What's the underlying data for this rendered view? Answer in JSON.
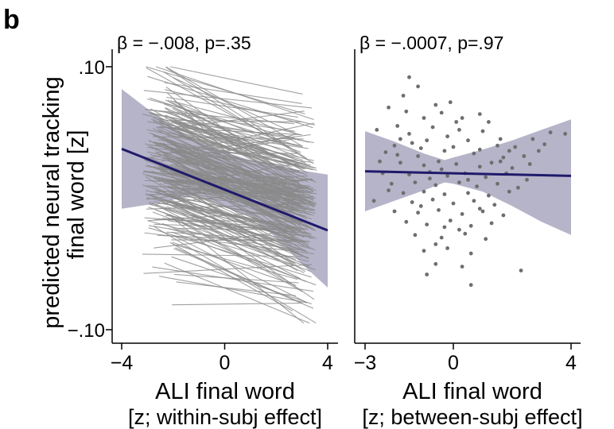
{
  "panel_label": "b",
  "ylabel_line1": "predicted neural tracking",
  "ylabel_line2": "final word [z]",
  "chart_data": [
    {
      "type": "line",
      "panel": "within-subj",
      "title": "β = −.008, p=.35",
      "xlabel_line1": "ALI final word",
      "xlabel_line2": "[z; within-subj effect]",
      "xlim": [
        -4,
        4
      ],
      "ylim": [
        -0.1,
        0.1
      ],
      "xticks": [
        {
          "v": -4,
          "label": "−4"
        },
        {
          "v": 0,
          "label": "0"
        },
        {
          "v": 4,
          "label": "4"
        }
      ],
      "yticks": [
        {
          "v": 0.1,
          "label": ".10"
        },
        {
          "v": -0.1,
          "label": "−.10"
        }
      ],
      "fit": {
        "x": [
          -4,
          4
        ],
        "y": [
          0.0375,
          -0.0245
        ]
      },
      "ci": {
        "x": [
          -4,
          -3,
          -2,
          -1,
          0,
          1,
          2,
          3,
          4
        ],
        "upper": [
          0.083,
          0.068,
          0.054,
          0.043,
          0.035,
          0.029,
          0.025,
          0.021,
          0.018
        ],
        "lower": [
          -0.008,
          -0.005,
          -0.001,
          0.002,
          -0.006,
          -0.014,
          -0.03,
          -0.05,
          -0.068
        ]
      },
      "subject_lines": {
        "count": 260,
        "x_start_range": [
          -3.2,
          -1.8
        ],
        "x_end_range": [
          2.6,
          3.6
        ],
        "y_center_start": 0.026,
        "y_center_end": -0.008,
        "y_spread": 0.034,
        "slope_sd": 0.011
      },
      "colors": {
        "fit": "#1f1a6b",
        "band": "#a9a7bf",
        "subject_lines": "#8a8a8a"
      }
    },
    {
      "type": "scatter",
      "panel": "between-subj",
      "title": "β = −.0007, p=.97",
      "xlabel_line1": "ALI final word",
      "xlabel_line2": "[z; between-subj effect]",
      "xlim": [
        -3,
        4
      ],
      "ylim": [
        -0.1,
        0.1
      ],
      "xticks": [
        {
          "v": -3,
          "label": "−3"
        },
        {
          "v": 0,
          "label": "0"
        },
        {
          "v": 4,
          "label": "4"
        }
      ],
      "fit": {
        "x": [
          -3,
          4
        ],
        "y": [
          0.0205,
          0.017
        ]
      },
      "ci": {
        "x": [
          -3,
          -2,
          -1,
          -0.3,
          0,
          1,
          2,
          3,
          4
        ],
        "upper": [
          0.051,
          0.043,
          0.034,
          0.029,
          0.031,
          0.037,
          0.044,
          0.052,
          0.06
        ],
        "lower": [
          -0.01,
          -0.002,
          0.006,
          0.012,
          0.011,
          0.005,
          -0.006,
          -0.018,
          -0.028
        ]
      },
      "points": [
        {
          "x": -1.5,
          "y": 0.092
        },
        {
          "x": -1.2,
          "y": 0.085
        },
        {
          "x": -1.7,
          "y": 0.078
        },
        {
          "x": -2.2,
          "y": 0.069
        },
        {
          "x": -0.6,
          "y": 0.071
        },
        {
          "x": -0.1,
          "y": 0.073
        },
        {
          "x": -1.6,
          "y": 0.066
        },
        {
          "x": -0.4,
          "y": 0.065
        },
        {
          "x": -1.0,
          "y": 0.061
        },
        {
          "x": 0.3,
          "y": 0.061
        },
        {
          "x": 0.9,
          "y": 0.064
        },
        {
          "x": 1.2,
          "y": 0.058
        },
        {
          "x": -2.6,
          "y": 0.052
        },
        {
          "x": -1.9,
          "y": 0.055
        },
        {
          "x": -0.7,
          "y": 0.054
        },
        {
          "x": 0.2,
          "y": 0.052
        },
        {
          "x": 1.0,
          "y": 0.051
        },
        {
          "x": 3.3,
          "y": 0.05
        },
        {
          "x": 3.8,
          "y": 0.049
        },
        {
          "x": 2.7,
          "y": 0.045
        },
        {
          "x": 3.1,
          "y": 0.041
        },
        {
          "x": -2.0,
          "y": 0.04
        },
        {
          "x": -1.4,
          "y": 0.042
        },
        {
          "x": -0.9,
          "y": 0.044
        },
        {
          "x": 0.5,
          "y": 0.044
        },
        {
          "x": 1.5,
          "y": 0.04
        },
        {
          "x": 2.1,
          "y": 0.039
        },
        {
          "x": -2.3,
          "y": 0.035
        },
        {
          "x": -1.2,
          "y": 0.032
        },
        {
          "x": -0.3,
          "y": 0.036
        },
        {
          "x": 0.7,
          "y": 0.034
        },
        {
          "x": 1.7,
          "y": 0.031
        },
        {
          "x": 2.4,
          "y": 0.032
        },
        {
          "x": -1.8,
          "y": 0.027
        },
        {
          "x": -1.0,
          "y": 0.025
        },
        {
          "x": -0.5,
          "y": 0.028
        },
        {
          "x": 0.1,
          "y": 0.026
        },
        {
          "x": 0.9,
          "y": 0.024
        },
        {
          "x": 1.3,
          "y": 0.027
        },
        {
          "x": 2.0,
          "y": 0.023
        },
        {
          "x": 2.6,
          "y": 0.026
        },
        {
          "x": -2.4,
          "y": 0.019
        },
        {
          "x": -1.5,
          "y": 0.018
        },
        {
          "x": -0.8,
          "y": 0.02
        },
        {
          "x": -0.2,
          "y": 0.017
        },
        {
          "x": 0.4,
          "y": 0.019
        },
        {
          "x": 1.1,
          "y": 0.016
        },
        {
          "x": 1.8,
          "y": 0.019
        },
        {
          "x": -2.1,
          "y": 0.011
        },
        {
          "x": -1.3,
          "y": 0.012
        },
        {
          "x": -0.6,
          "y": 0.01
        },
        {
          "x": 0.2,
          "y": 0.012
        },
        {
          "x": 0.8,
          "y": 0.009
        },
        {
          "x": 1.5,
          "y": 0.011
        },
        {
          "x": 2.2,
          "y": 0.008
        },
        {
          "x": -1.7,
          "y": 0.004
        },
        {
          "x": -1.0,
          "y": 0.005
        },
        {
          "x": -0.3,
          "y": 0.003
        },
        {
          "x": 0.5,
          "y": 0.004
        },
        {
          "x": 1.2,
          "y": 0.002
        },
        {
          "x": 1.9,
          "y": 0.005
        },
        {
          "x": -2.7,
          "y": -0.002
        },
        {
          "x": -1.4,
          "y": -0.003
        },
        {
          "x": -0.7,
          "y": -0.001
        },
        {
          "x": 0.0,
          "y": -0.004
        },
        {
          "x": 0.7,
          "y": -0.002
        },
        {
          "x": 1.4,
          "y": -0.005
        },
        {
          "x": -2.0,
          "y": -0.01
        },
        {
          "x": -1.2,
          "y": -0.011
        },
        {
          "x": -0.5,
          "y": -0.009
        },
        {
          "x": 0.3,
          "y": -0.012
        },
        {
          "x": 1.0,
          "y": -0.01
        },
        {
          "x": 1.7,
          "y": -0.013
        },
        {
          "x": -1.6,
          "y": -0.018
        },
        {
          "x": -0.9,
          "y": -0.02
        },
        {
          "x": -0.1,
          "y": -0.017
        },
        {
          "x": 0.6,
          "y": -0.021
        },
        {
          "x": 1.3,
          "y": -0.019
        },
        {
          "x": -1.3,
          "y": -0.028
        },
        {
          "x": -0.4,
          "y": -0.03
        },
        {
          "x": 0.4,
          "y": -0.027
        },
        {
          "x": 1.1,
          "y": -0.031
        },
        {
          "x": -1.0,
          "y": -0.04
        },
        {
          "x": -0.2,
          "y": -0.038
        },
        {
          "x": 0.6,
          "y": -0.042
        },
        {
          "x": -0.6,
          "y": -0.05
        },
        {
          "x": 0.3,
          "y": -0.052
        },
        {
          "x": -0.9,
          "y": -0.058
        },
        {
          "x": 2.3,
          "y": -0.055
        },
        {
          "x": 0.6,
          "y": -0.066
        },
        {
          "x": -1.5,
          "y": 0.049
        },
        {
          "x": -0.2,
          "y": 0.047
        },
        {
          "x": 1.6,
          "y": 0.045
        },
        {
          "x": -2.5,
          "y": 0.028
        },
        {
          "x": -1.9,
          "y": 0.033
        },
        {
          "x": 0.0,
          "y": 0.039
        },
        {
          "x": 2.9,
          "y": 0.036
        },
        {
          "x": -0.8,
          "y": 0.015
        },
        {
          "x": 0.9,
          "y": -0.008
        },
        {
          "x": -1.1,
          "y": -0.006
        },
        {
          "x": 0.2,
          "y": -0.024
        },
        {
          "x": -1.8,
          "y": 0.045
        },
        {
          "x": 0.1,
          "y": 0.058
        },
        {
          "x": -0.4,
          "y": 0.022
        },
        {
          "x": 1.6,
          "y": 0.028
        },
        {
          "x": -0.6,
          "y": -0.035
        },
        {
          "x": 0.9,
          "y": 0.037
        },
        {
          "x": -1.1,
          "y": 0.038
        },
        {
          "x": 0.5,
          "y": 0.014
        },
        {
          "x": -2.2,
          "y": 0.006
        },
        {
          "x": 1.9,
          "y": 0.036
        },
        {
          "x": -0.3,
          "y": -0.022
        },
        {
          "x": 2.5,
          "y": 0.014
        }
      ],
      "colors": {
        "fit": "#1f1a6b",
        "band": "#a9a7bf",
        "points": "#6e6e6e"
      }
    }
  ]
}
